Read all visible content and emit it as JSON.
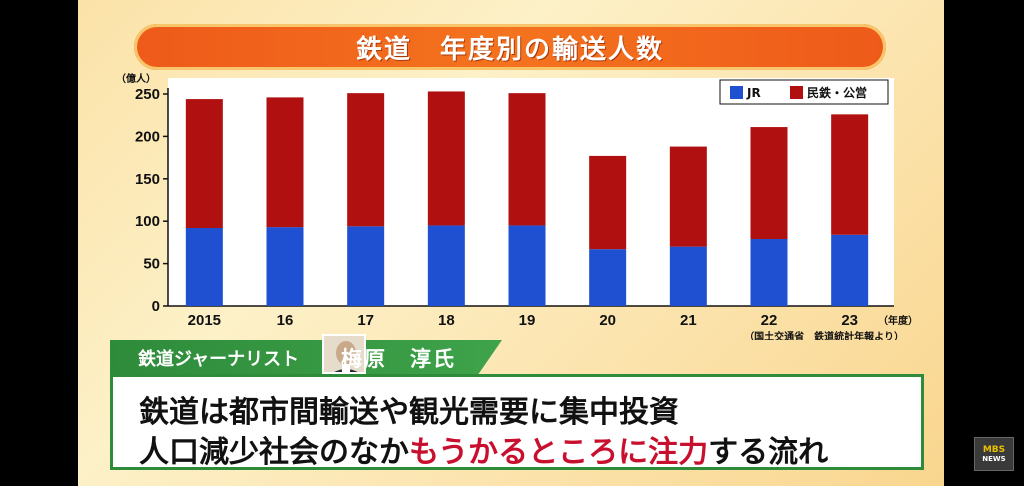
{
  "title": "鉄道　年度別の輸送人数",
  "chart_data": {
    "type": "bar",
    "stacked": true,
    "title": "鉄道　年度別の輸送人数",
    "ylabel": "（億人）",
    "xlabel": "（年度）",
    "categories": [
      "2015",
      "16",
      "17",
      "18",
      "19",
      "20",
      "21",
      "22",
      "23"
    ],
    "series": [
      {
        "name": "JR",
        "color": "#1f50d1",
        "values": [
          92,
          93,
          94,
          95,
          95,
          67,
          70,
          79,
          84
        ]
      },
      {
        "name": "民鉄・公営",
        "color": "#b01010",
        "values": [
          152,
          153,
          157,
          158,
          156,
          110,
          118,
          132,
          142
        ]
      }
    ],
    "ylim": [
      0,
      250
    ],
    "yticks": [
      "0",
      "50",
      "100",
      "150",
      "200",
      "250"
    ],
    "grid": false,
    "legend": "top-right",
    "source": "（国土交通省　鉄道統計年報より）"
  },
  "caption": {
    "role": "鉄道ジャーナリスト",
    "name": "梅原　淳氏"
  },
  "subtitle": {
    "line1": "鉄道は都市間輸送や観光需要に集中投資",
    "line2_a": "人口減少社会のなか",
    "line2_em": "もうかるところに注力",
    "line2_b": "する流れ"
  },
  "logo": {
    "top": "MBS",
    "bottom": "NEWS"
  }
}
